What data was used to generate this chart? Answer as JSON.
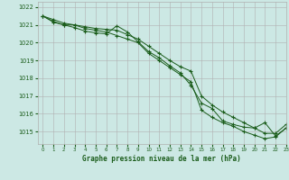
{
  "title": "Graphe pression niveau de la mer (hPa)",
  "background_color": "#cce8e4",
  "grid_color": "#b0b0b0",
  "line_color": "#1a5c1a",
  "xlim": [
    -0.5,
    23
  ],
  "ylim": [
    1014.3,
    1022.3
  ],
  "yticks": [
    1015,
    1016,
    1017,
    1018,
    1019,
    1020,
    1021,
    1022
  ],
  "xticks": [
    0,
    1,
    2,
    3,
    4,
    5,
    6,
    7,
    8,
    9,
    10,
    11,
    12,
    13,
    14,
    15,
    16,
    17,
    18,
    19,
    20,
    21,
    22,
    23
  ],
  "series1": [
    1021.5,
    1021.3,
    1021.1,
    1021.0,
    1020.8,
    1020.7,
    1020.6,
    1020.4,
    1020.2,
    1020.0,
    1019.4,
    1019.0,
    1018.6,
    1018.2,
    1017.8,
    1016.2,
    1015.8,
    1015.5,
    1015.3,
    1015.0,
    1014.8,
    1014.6,
    1014.7,
    1015.2
  ],
  "series2": [
    1021.5,
    1021.2,
    1021.0,
    1021.0,
    1020.9,
    1020.8,
    1020.75,
    1020.7,
    1020.45,
    1020.2,
    1019.8,
    1019.4,
    1019.0,
    1018.65,
    1018.4,
    1017.0,
    1016.5,
    1016.1,
    1015.8,
    1015.5,
    1015.2,
    1014.9,
    1014.9,
    1015.4
  ],
  "series3": [
    1021.5,
    1021.15,
    1021.0,
    1020.85,
    1020.65,
    1020.55,
    1020.5,
    1020.95,
    1020.6,
    1020.05,
    1019.5,
    1019.15,
    1018.7,
    1018.3,
    1017.6,
    1016.6,
    1016.3,
    1015.6,
    1015.4,
    1015.25,
    1015.2,
    1015.5,
    1014.75,
    1015.2
  ]
}
